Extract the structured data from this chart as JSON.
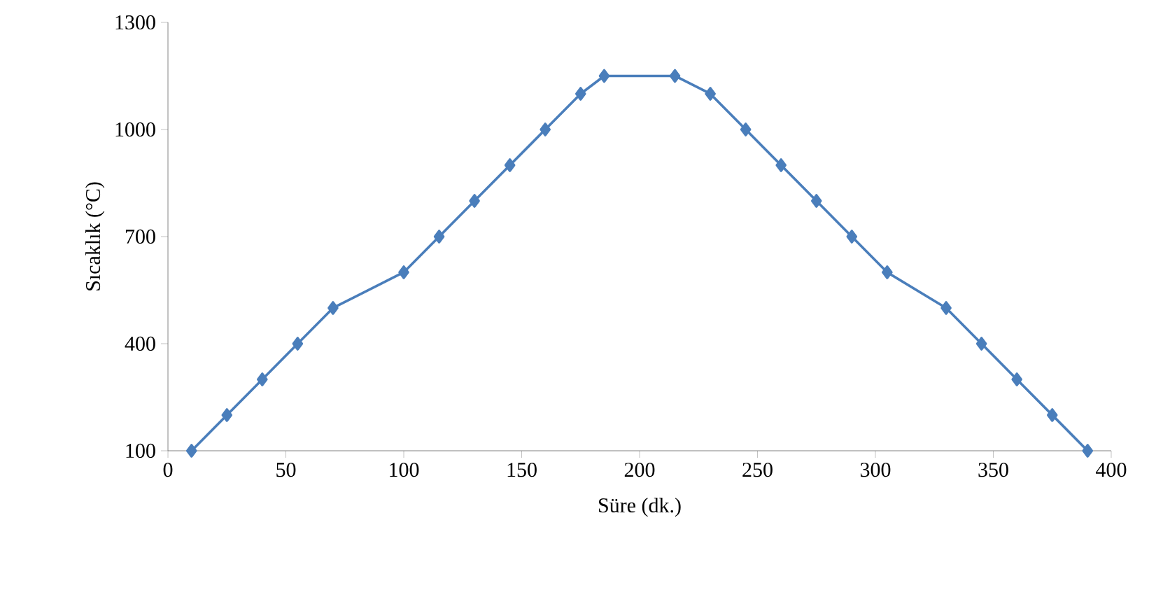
{
  "chart_data": {
    "type": "line",
    "xlabel": "Süre (dk.)",
    "ylabel": "Sıcaklık (°C)",
    "x": [
      10,
      25,
      40,
      55,
      70,
      100,
      115,
      130,
      145,
      160,
      175,
      185,
      215,
      230,
      245,
      260,
      275,
      290,
      305,
      330,
      345,
      360,
      375,
      390
    ],
    "series": [
      {
        "color": "#4a7ebb",
        "values": [
          100,
          200,
          300,
          400,
          500,
          600,
          700,
          800,
          900,
          1000,
          1100,
          1150,
          1150,
          1100,
          1000,
          900,
          800,
          700,
          600,
          500,
          400,
          300,
          200,
          100
        ]
      }
    ],
    "xlim": [
      0,
      400
    ],
    "xticks": [
      0,
      50,
      100,
      150,
      200,
      250,
      300,
      350,
      400
    ],
    "ylim": [
      100,
      1300
    ],
    "yticks": [
      100,
      400,
      700,
      1000,
      1300
    ],
    "marker": "diamond",
    "line_style": "solid",
    "grid": false
  }
}
